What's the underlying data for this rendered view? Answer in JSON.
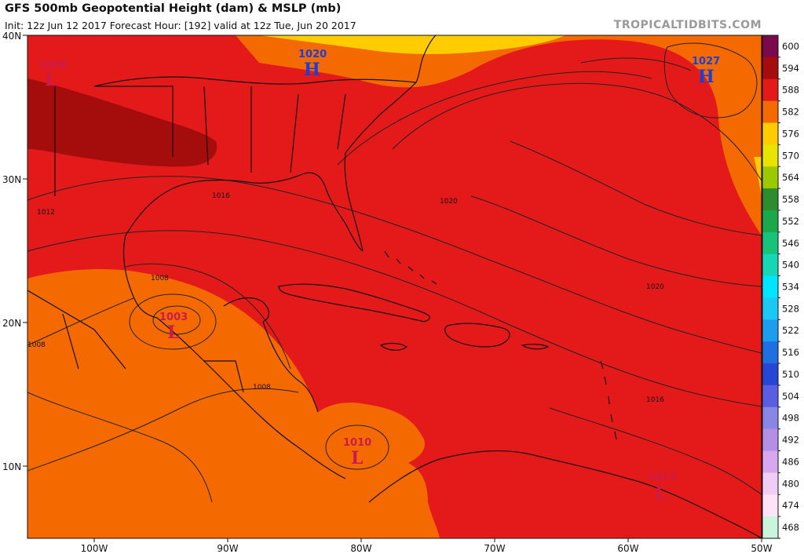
{
  "header": {
    "title": "GFS 500mb Geopotential Height (dam) & MSLP (mb)",
    "init_line": "Init: 12z Jun 12 2017   Forecast Hour: [192]   valid at 12z Tue, Jun 20 2017",
    "brand": "TROPICALTIDBITS.COM"
  },
  "axes": {
    "lat_labels": [
      "40N",
      "30N",
      "20N",
      "10N"
    ],
    "lon_labels": [
      "100W",
      "90W",
      "80W",
      "70W",
      "60W",
      "50W"
    ]
  },
  "colorbar": {
    "levels": [
      "600",
      "594",
      "588",
      "582",
      "576",
      "570",
      "564",
      "558",
      "552",
      "546",
      "540",
      "534",
      "528",
      "522",
      "516",
      "510",
      "504",
      "498",
      "492",
      "486",
      "480",
      "474",
      "468"
    ],
    "colors": [
      "#7a0a4c",
      "#a50d0d",
      "#e41a1a",
      "#f56a00",
      "#ffcc00",
      "#e8e400",
      "#9dc900",
      "#2e8c2e",
      "#1aa84a",
      "#17c27a",
      "#17d6b5",
      "#00e5ff",
      "#1ec8f5",
      "#1e9cee",
      "#1f6fe0",
      "#2646d6",
      "#5b5ee0",
      "#8a86e6",
      "#b48fe6",
      "#d6a8ee",
      "#f0cdf5",
      "#fde3f6",
      "#c9f5dc"
    ]
  },
  "isobar_labels": [
    "1008",
    "1012",
    "1016",
    "1020",
    "1008",
    "1008",
    "1020",
    "1016",
    "1008"
  ],
  "pressure_centers": [
    {
      "value": "1008",
      "symbol": "L",
      "color": "#cc1a4a"
    },
    {
      "value": "1020",
      "symbol": "H",
      "color": "#1a3fd6"
    },
    {
      "value": "1027",
      "symbol": "H",
      "color": "#1a3fd6"
    },
    {
      "value": "1003",
      "symbol": "L",
      "color": "#cc1a4a"
    },
    {
      "value": "1010",
      "symbol": "L",
      "color": "#cc1a4a"
    },
    {
      "value": "1013",
      "symbol": "L",
      "color": "#cc1a4a"
    }
  ],
  "fill_colors": {
    "h588": "#e41a1a",
    "h594": "#a50d0d",
    "h582": "#f56a00",
    "h576": "#ffcc00"
  }
}
